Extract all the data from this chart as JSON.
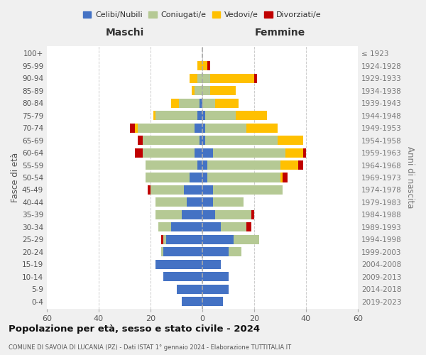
{
  "age_groups": [
    "0-4",
    "5-9",
    "10-14",
    "15-19",
    "20-24",
    "25-29",
    "30-34",
    "35-39",
    "40-44",
    "45-49",
    "50-54",
    "55-59",
    "60-64",
    "65-69",
    "70-74",
    "75-79",
    "80-84",
    "85-89",
    "90-94",
    "95-99",
    "100+"
  ],
  "birth_years": [
    "2019-2023",
    "2014-2018",
    "2009-2013",
    "2004-2008",
    "1999-2003",
    "1994-1998",
    "1989-1993",
    "1984-1988",
    "1979-1983",
    "1974-1978",
    "1969-1973",
    "1964-1968",
    "1959-1963",
    "1954-1958",
    "1949-1953",
    "1944-1948",
    "1939-1943",
    "1934-1938",
    "1929-1933",
    "1924-1928",
    "≤ 1923"
  ],
  "colors": {
    "celibi": "#4472c4",
    "coniugati": "#b5c994",
    "vedovi": "#ffc000",
    "divorziati": "#c00000"
  },
  "maschi": {
    "celibi": [
      8,
      10,
      15,
      18,
      15,
      14,
      12,
      8,
      6,
      7,
      5,
      2,
      3,
      1,
      3,
      2,
      1,
      0,
      0,
      0,
      0
    ],
    "coniugati": [
      0,
      0,
      0,
      0,
      1,
      1,
      5,
      10,
      12,
      13,
      17,
      20,
      20,
      22,
      22,
      16,
      8,
      3,
      2,
      0,
      0
    ],
    "vedovi": [
      0,
      0,
      0,
      0,
      0,
      0,
      0,
      0,
      0,
      0,
      0,
      0,
      0,
      0,
      1,
      1,
      3,
      1,
      3,
      2,
      0
    ],
    "divorziati": [
      0,
      0,
      0,
      0,
      0,
      1,
      0,
      0,
      0,
      1,
      0,
      0,
      3,
      2,
      2,
      0,
      0,
      0,
      0,
      0,
      0
    ]
  },
  "femmine": {
    "celibi": [
      8,
      10,
      10,
      7,
      10,
      12,
      7,
      5,
      4,
      4,
      2,
      2,
      4,
      1,
      1,
      1,
      0,
      0,
      0,
      0,
      0
    ],
    "coniugati": [
      0,
      0,
      0,
      0,
      5,
      10,
      10,
      14,
      12,
      27,
      28,
      28,
      28,
      28,
      16,
      12,
      5,
      3,
      3,
      0,
      0
    ],
    "vedovi": [
      0,
      0,
      0,
      0,
      0,
      0,
      0,
      0,
      0,
      0,
      1,
      7,
      7,
      10,
      12,
      12,
      9,
      10,
      17,
      2,
      0
    ],
    "divorziati": [
      0,
      0,
      0,
      0,
      0,
      0,
      2,
      1,
      0,
      0,
      2,
      2,
      1,
      0,
      0,
      0,
      0,
      0,
      1,
      1,
      0
    ]
  },
  "xlim": 60,
  "title": "Popolazione per età, sesso e stato civile - 2024",
  "subtitle": "COMUNE DI SAVOIA DI LUCANIA (PZ) - Dati ISTAT 1° gennaio 2024 - Elaborazione TUTTITALIA.IT",
  "ylabel": "Fasce di età",
  "ylabel_right": "Anni di nascita",
  "xlabel_left": "Maschi",
  "xlabel_right": "Femmine",
  "legend_labels": [
    "Celibi/Nubili",
    "Coniugati/e",
    "Vedovi/e",
    "Divorziati/e"
  ],
  "bg_color": "#f0f0f0",
  "plot_bg": "#ffffff"
}
